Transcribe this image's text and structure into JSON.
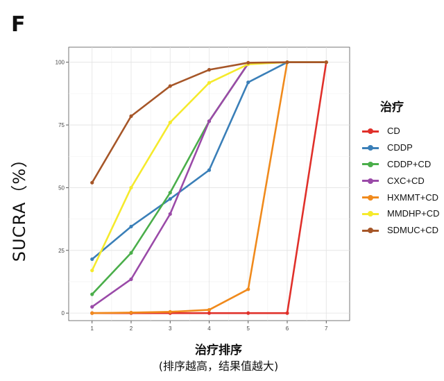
{
  "panel_label": "F",
  "chart_data": {
    "type": "line",
    "title": "",
    "xlabel": "治疗排序",
    "xlabel_sub": "(排序越高，结果值越大)",
    "ylabel": "SUCRA（%）",
    "x": [
      1,
      2,
      3,
      4,
      5,
      6,
      7
    ],
    "xtick_labels": [
      "1",
      "2",
      "3",
      "4",
      "5",
      "6",
      "7"
    ],
    "ytick_values": [
      0,
      25,
      50,
      75,
      100
    ],
    "ytick_labels": [
      "0",
      "25",
      "50",
      "75",
      "100"
    ],
    "xlim": [
      0.4,
      7.6
    ],
    "ylim": [
      -3,
      106
    ],
    "grid": true,
    "legend_title": "治疗",
    "legend_position": "right",
    "series": [
      {
        "name": "CD",
        "color": "#e0302a",
        "values": [
          0,
          0,
          0,
          0,
          0,
          0,
          100
        ]
      },
      {
        "name": "CDDP",
        "color": "#3a7fb8",
        "values": [
          21.5,
          34.5,
          45.5,
          57,
          92,
          100,
          100
        ]
      },
      {
        "name": "CDDP+CD",
        "color": "#4aae4a",
        "values": [
          7.5,
          24,
          48,
          76.5,
          99.5,
          100,
          100
        ]
      },
      {
        "name": "CXC+CD",
        "color": "#9a4aa8",
        "values": [
          2.5,
          13.5,
          39.5,
          76.5,
          99.5,
          100,
          100
        ]
      },
      {
        "name": "HXMMT+CD",
        "color": "#f08a1c",
        "values": [
          0,
          0.2,
          0.5,
          1.3,
          9.5,
          100,
          100
        ]
      },
      {
        "name": "MMDHP+CD",
        "color": "#f5ea2c",
        "values": [
          17,
          50,
          76,
          91.8,
          99.2,
          100,
          100
        ]
      },
      {
        "name": "SDMUC+CD",
        "color": "#a65628",
        "values": [
          52,
          78.5,
          90.5,
          97,
          99.8,
          100,
          100
        ]
      }
    ]
  }
}
